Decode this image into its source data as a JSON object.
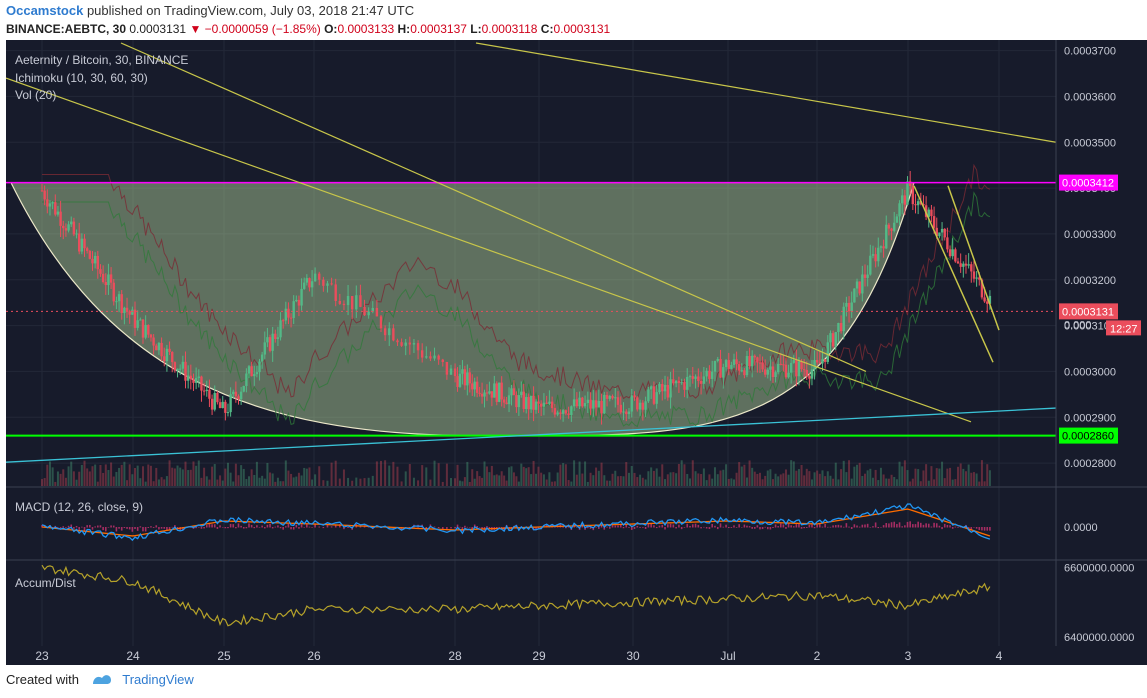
{
  "header": {
    "author": "Occamstock",
    "published_text": "published on TradingView.com, July 03, 2018 21:47 UTC",
    "symbol": "BINANCE:AEBTC, 30",
    "last_price": "0.0003131",
    "change": "▼ −0.0000059 (−1.85%)",
    "open_label": "O:",
    "open": "0.0003133",
    "high_label": "H:",
    "high": "0.0003137",
    "low_label": "L:",
    "low": "0.0003118",
    "close_label": "C:",
    "close": "0.0003131"
  },
  "panes": {
    "main": {
      "title": "Aeternity / Bitcoin, 30, BINANCE",
      "ichimoku": "Ichimoku (10, 30, 60, 30)",
      "volume": "Vol (20)"
    },
    "macd": {
      "title": "MACD (12, 26, close, 9)"
    },
    "accum": {
      "title": "Accum/Dist"
    }
  },
  "colors": {
    "background": "#171b2b",
    "up": "#53b987",
    "down": "#eb4d5c",
    "resistance": "#ff00ff",
    "support": "#00ff00",
    "trendline": "#c8c64a",
    "rising_line": "#3ac2d6",
    "cup_fill": "#b9d9a0",
    "macd": "#2196f3",
    "signal": "#ff6d00",
    "adl": "#b5a22a"
  },
  "chart_data": [
    {
      "type": "line",
      "pane": "main",
      "x": [
        "23",
        "24",
        "25",
        "26",
        "28",
        "29",
        "30",
        "Jul",
        "2",
        "3",
        "4"
      ],
      "ylim": [
        0.000275,
        0.000371
      ],
      "y_ticks": [
        "0.0003700",
        "0.0003600",
        "0.0003500",
        "0.0003400",
        "0.0003300",
        "0.0003200",
        "0.0003100",
        "0.0003000",
        "0.0002900",
        "0.0002800"
      ],
      "series": [
        {
          "values": [
            0.0003395,
            0.0003115,
            0.000291,
            0.000321,
            0.000299,
            0.000292,
            0.000293,
            0.0003015,
            0.0003005,
            0.0003395,
            0.0003131
          ]
        }
      ],
      "horizontal_levels": [
        {
          "value": 0.0003412,
          "label": "0.0003412"
        },
        {
          "value": 0.000286,
          "label": "0.0002860"
        },
        {
          "value": 0.0003131,
          "label": "0.0003131"
        }
      ],
      "countdown_label": "12:27",
      "partial_tick_label": "0.000"
    },
    {
      "type": "line",
      "pane": "macd",
      "y_ticks": [
        "0.0000"
      ],
      "series": [
        {
          "values": [
            0.0,
            -3e-07,
            2e-07,
            1e-07,
            -1e-07,
            0.0,
            1e-07,
            2e-07,
            1e-07,
            6e-07,
            -4e-07
          ]
        }
      ]
    },
    {
      "type": "line",
      "pane": "accum",
      "y_ticks": [
        "6600000.0000",
        "6400000.0000"
      ],
      "series": [
        {
          "values": [
            6600000,
            6560000,
            6440000,
            6480000,
            6480000,
            6490000,
            6500000,
            6510000,
            6520000,
            6490000,
            6550000
          ]
        }
      ]
    }
  ],
  "footer": {
    "created_with": "Created with",
    "brand": "TradingView"
  }
}
